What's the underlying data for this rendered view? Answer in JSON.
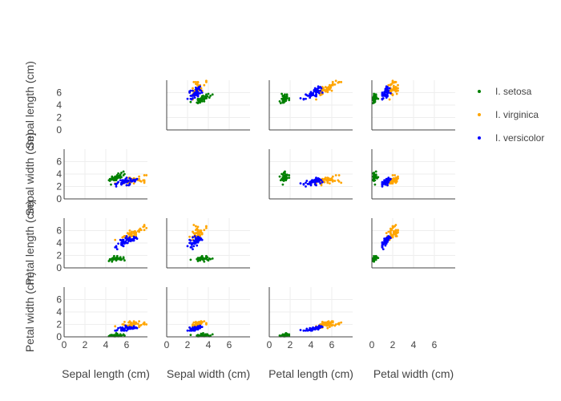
{
  "chart_data": {
    "type": "scatter",
    "subtype": "scatter-matrix",
    "title": "",
    "dimensions": [
      "Sepal length (cm)",
      "Sepal width (cm)",
      "Petal length (cm)",
      "Petal width (cm)"
    ],
    "axis_range": [
      0,
      8
    ],
    "tick_values": [
      0,
      2,
      4,
      6
    ],
    "diagonal": "empty",
    "grid": true,
    "legend_position": "right",
    "series": [
      {
        "name": "I. setosa",
        "color": "#008000",
        "points": [
          [
            5.1,
            3.5,
            1.4,
            0.2
          ],
          [
            4.9,
            3.0,
            1.4,
            0.2
          ],
          [
            4.7,
            3.2,
            1.3,
            0.2
          ],
          [
            4.6,
            3.1,
            1.5,
            0.2
          ],
          [
            5.0,
            3.6,
            1.4,
            0.2
          ],
          [
            5.4,
            3.9,
            1.7,
            0.4
          ],
          [
            4.6,
            3.4,
            1.4,
            0.3
          ],
          [
            5.0,
            3.4,
            1.5,
            0.2
          ],
          [
            4.4,
            2.9,
            1.4,
            0.2
          ],
          [
            4.9,
            3.1,
            1.5,
            0.1
          ],
          [
            5.4,
            3.7,
            1.5,
            0.2
          ],
          [
            4.8,
            3.4,
            1.6,
            0.2
          ],
          [
            4.8,
            3.0,
            1.4,
            0.1
          ],
          [
            4.3,
            3.0,
            1.1,
            0.1
          ],
          [
            5.8,
            4.0,
            1.2,
            0.2
          ],
          [
            5.7,
            4.4,
            1.5,
            0.4
          ],
          [
            5.4,
            3.9,
            1.3,
            0.4
          ],
          [
            5.1,
            3.5,
            1.4,
            0.3
          ],
          [
            5.7,
            3.8,
            1.7,
            0.3
          ],
          [
            5.1,
            3.8,
            1.5,
            0.3
          ],
          [
            5.4,
            3.4,
            1.7,
            0.2
          ],
          [
            5.1,
            3.7,
            1.5,
            0.4
          ],
          [
            4.6,
            3.6,
            1.0,
            0.2
          ],
          [
            5.1,
            3.3,
            1.7,
            0.5
          ],
          [
            4.8,
            3.4,
            1.9,
            0.2
          ],
          [
            5.0,
            3.0,
            1.6,
            0.2
          ],
          [
            5.0,
            3.4,
            1.6,
            0.4
          ],
          [
            5.2,
            3.5,
            1.5,
            0.2
          ],
          [
            5.2,
            3.4,
            1.4,
            0.2
          ],
          [
            4.7,
            3.2,
            1.6,
            0.2
          ],
          [
            4.8,
            3.1,
            1.6,
            0.2
          ],
          [
            5.4,
            3.4,
            1.5,
            0.4
          ],
          [
            5.2,
            4.1,
            1.5,
            0.1
          ],
          [
            5.5,
            4.2,
            1.4,
            0.2
          ],
          [
            4.9,
            3.1,
            1.5,
            0.2
          ],
          [
            5.0,
            3.2,
            1.2,
            0.2
          ],
          [
            5.5,
            3.5,
            1.3,
            0.2
          ],
          [
            4.9,
            3.6,
            1.4,
            0.1
          ],
          [
            4.4,
            3.0,
            1.3,
            0.2
          ],
          [
            5.1,
            3.4,
            1.5,
            0.2
          ],
          [
            5.0,
            3.5,
            1.3,
            0.3
          ],
          [
            4.5,
            2.3,
            1.3,
            0.3
          ],
          [
            4.4,
            3.2,
            1.3,
            0.2
          ],
          [
            5.0,
            3.5,
            1.6,
            0.6
          ],
          [
            5.1,
            3.8,
            1.9,
            0.4
          ],
          [
            4.8,
            3.0,
            1.4,
            0.3
          ],
          [
            5.1,
            3.8,
            1.6,
            0.2
          ],
          [
            4.6,
            3.2,
            1.4,
            0.2
          ],
          [
            5.3,
            3.7,
            1.5,
            0.2
          ],
          [
            5.0,
            3.3,
            1.4,
            0.2
          ]
        ]
      },
      {
        "name": "I. virginica",
        "color": "#FFA500",
        "points": [
          [
            6.3,
            3.3,
            6.0,
            2.5
          ],
          [
            5.8,
            2.7,
            5.1,
            1.9
          ],
          [
            7.1,
            3.0,
            5.9,
            2.1
          ],
          [
            6.3,
            2.9,
            5.6,
            1.8
          ],
          [
            6.5,
            3.0,
            5.8,
            2.2
          ],
          [
            7.6,
            3.0,
            6.6,
            2.1
          ],
          [
            4.9,
            2.5,
            4.5,
            1.7
          ],
          [
            7.3,
            2.9,
            6.3,
            1.8
          ],
          [
            6.7,
            2.5,
            5.8,
            1.8
          ],
          [
            7.2,
            3.6,
            6.1,
            2.5
          ],
          [
            6.5,
            3.2,
            5.1,
            2.0
          ],
          [
            6.4,
            2.7,
            5.3,
            1.9
          ],
          [
            6.8,
            3.0,
            5.5,
            2.1
          ],
          [
            5.7,
            2.5,
            5.0,
            2.0
          ],
          [
            5.8,
            2.8,
            5.1,
            2.4
          ],
          [
            6.4,
            3.2,
            5.3,
            2.3
          ],
          [
            6.5,
            3.0,
            5.5,
            1.8
          ],
          [
            7.7,
            3.8,
            6.7,
            2.2
          ],
          [
            7.7,
            2.6,
            6.9,
            2.3
          ],
          [
            6.0,
            2.2,
            5.0,
            1.5
          ],
          [
            6.9,
            3.2,
            5.7,
            2.3
          ],
          [
            5.6,
            2.8,
            4.9,
            2.0
          ],
          [
            7.7,
            2.8,
            6.7,
            2.0
          ],
          [
            6.3,
            2.7,
            4.9,
            1.8
          ],
          [
            6.7,
            3.3,
            5.7,
            2.1
          ],
          [
            7.2,
            3.2,
            6.0,
            1.8
          ],
          [
            6.2,
            2.8,
            4.8,
            1.8
          ],
          [
            6.1,
            3.0,
            4.9,
            1.8
          ],
          [
            6.4,
            2.8,
            5.6,
            2.1
          ],
          [
            7.2,
            3.0,
            5.8,
            1.6
          ],
          [
            7.4,
            2.8,
            6.1,
            1.9
          ],
          [
            7.9,
            3.8,
            6.4,
            2.0
          ],
          [
            6.4,
            2.8,
            5.6,
            2.2
          ],
          [
            6.3,
            2.8,
            5.1,
            1.5
          ],
          [
            6.1,
            2.6,
            5.6,
            1.4
          ],
          [
            7.7,
            3.0,
            6.1,
            2.3
          ],
          [
            6.3,
            3.4,
            5.6,
            2.4
          ],
          [
            6.4,
            3.1,
            5.5,
            1.8
          ],
          [
            6.0,
            3.0,
            4.8,
            1.8
          ],
          [
            6.9,
            3.1,
            5.4,
            2.1
          ],
          [
            6.7,
            3.1,
            5.6,
            2.4
          ],
          [
            6.9,
            3.1,
            5.1,
            2.3
          ],
          [
            5.8,
            2.7,
            5.1,
            1.9
          ],
          [
            6.8,
            3.2,
            5.9,
            2.3
          ],
          [
            6.7,
            3.3,
            5.7,
            2.5
          ],
          [
            6.7,
            3.0,
            5.2,
            2.3
          ],
          [
            6.3,
            2.5,
            5.0,
            1.9
          ],
          [
            6.5,
            3.0,
            5.2,
            2.0
          ],
          [
            6.2,
            3.4,
            5.4,
            2.3
          ],
          [
            5.9,
            3.0,
            5.1,
            1.8
          ]
        ]
      },
      {
        "name": "I. versicolor",
        "color": "#0000FF",
        "points": [
          [
            7.0,
            3.2,
            4.7,
            1.4
          ],
          [
            6.4,
            3.2,
            4.5,
            1.5
          ],
          [
            6.9,
            3.1,
            4.9,
            1.5
          ],
          [
            5.5,
            2.3,
            4.0,
            1.3
          ],
          [
            6.5,
            2.8,
            4.6,
            1.5
          ],
          [
            5.7,
            2.8,
            4.5,
            1.3
          ],
          [
            6.3,
            3.3,
            4.7,
            1.6
          ],
          [
            4.9,
            2.4,
            3.3,
            1.0
          ],
          [
            6.6,
            2.9,
            4.6,
            1.3
          ],
          [
            5.2,
            2.7,
            3.9,
            1.4
          ],
          [
            5.0,
            2.0,
            3.5,
            1.0
          ],
          [
            5.9,
            3.0,
            4.2,
            1.5
          ],
          [
            6.0,
            2.2,
            4.0,
            1.0
          ],
          [
            6.1,
            2.9,
            4.7,
            1.4
          ],
          [
            5.6,
            2.9,
            3.6,
            1.3
          ],
          [
            6.7,
            3.1,
            4.4,
            1.4
          ],
          [
            5.6,
            3.0,
            4.5,
            1.5
          ],
          [
            5.8,
            2.7,
            4.1,
            1.0
          ],
          [
            6.2,
            2.2,
            4.5,
            1.5
          ],
          [
            5.6,
            2.5,
            3.9,
            1.1
          ],
          [
            5.9,
            3.2,
            4.8,
            1.8
          ],
          [
            6.1,
            2.8,
            4.0,
            1.3
          ],
          [
            6.3,
            2.5,
            4.9,
            1.5
          ],
          [
            6.1,
            2.8,
            4.7,
            1.2
          ],
          [
            6.4,
            2.9,
            4.3,
            1.3
          ],
          [
            6.6,
            3.0,
            4.4,
            1.4
          ],
          [
            6.8,
            2.8,
            4.8,
            1.4
          ],
          [
            6.7,
            3.0,
            5.0,
            1.7
          ],
          [
            6.0,
            2.9,
            4.5,
            1.5
          ],
          [
            5.7,
            2.6,
            3.5,
            1.0
          ],
          [
            5.5,
            2.4,
            3.8,
            1.1
          ],
          [
            5.5,
            2.4,
            3.7,
            1.0
          ],
          [
            5.8,
            2.7,
            3.9,
            1.2
          ],
          [
            6.0,
            2.7,
            5.1,
            1.6
          ],
          [
            5.4,
            3.0,
            4.5,
            1.5
          ],
          [
            6.0,
            3.4,
            4.5,
            1.6
          ],
          [
            6.7,
            3.1,
            4.7,
            1.5
          ],
          [
            6.3,
            2.3,
            4.4,
            1.3
          ],
          [
            5.6,
            3.0,
            4.1,
            1.3
          ],
          [
            5.5,
            2.5,
            4.0,
            1.3
          ],
          [
            5.5,
            2.6,
            4.4,
            1.2
          ],
          [
            6.1,
            3.0,
            4.6,
            1.4
          ],
          [
            5.8,
            2.6,
            4.0,
            1.2
          ],
          [
            5.0,
            2.3,
            3.3,
            1.0
          ],
          [
            5.6,
            2.7,
            4.2,
            1.3
          ],
          [
            5.7,
            3.0,
            4.2,
            1.2
          ],
          [
            5.7,
            2.9,
            4.2,
            1.3
          ],
          [
            6.2,
            2.9,
            4.3,
            1.3
          ],
          [
            5.1,
            2.5,
            3.0,
            1.1
          ],
          [
            5.7,
            2.8,
            4.1,
            1.3
          ]
        ]
      }
    ]
  }
}
